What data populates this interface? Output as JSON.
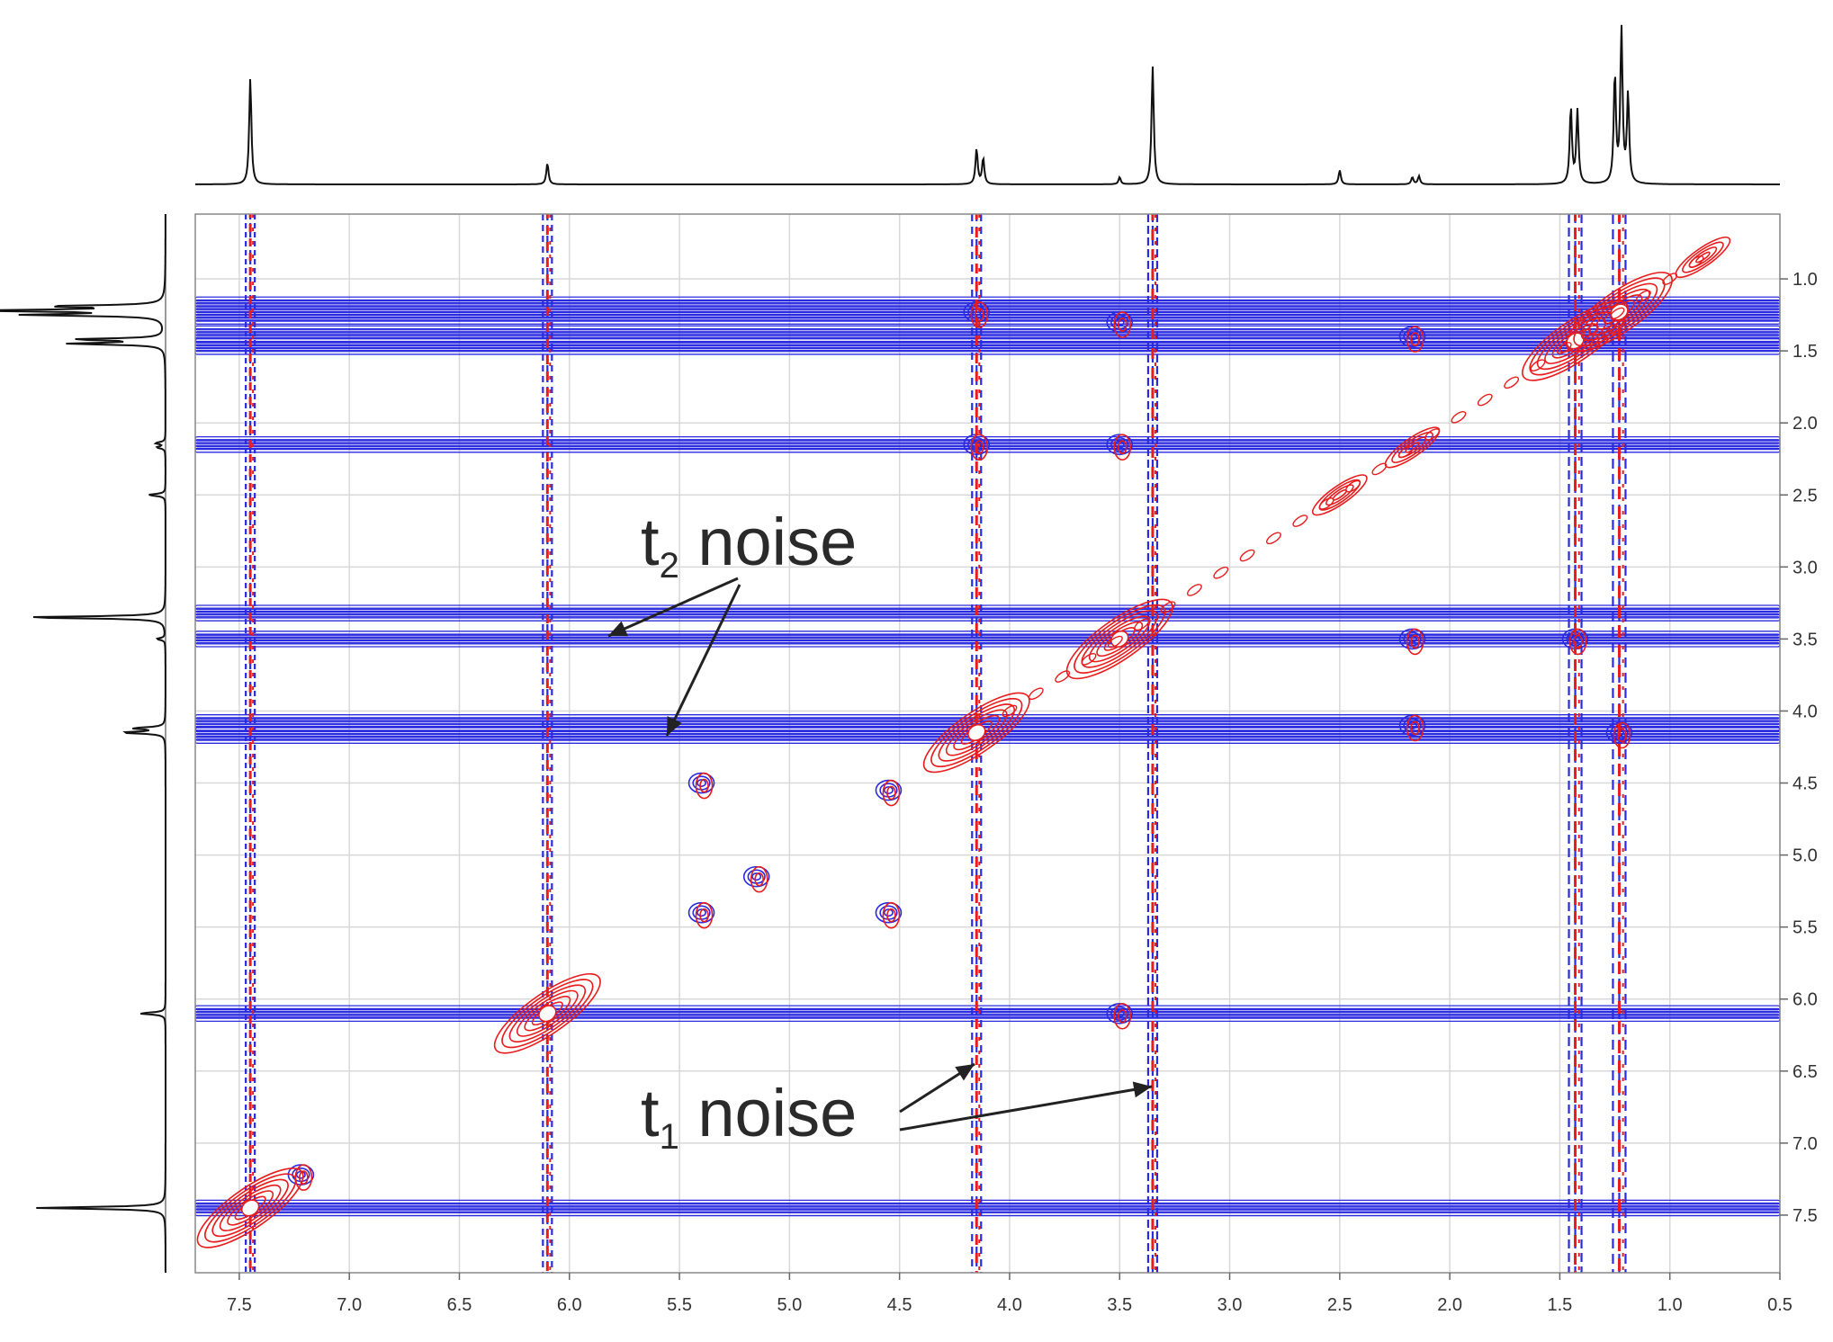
{
  "chart_data": {
    "type": "contour",
    "x_axis": {
      "range": [
        7.7,
        0.5
      ],
      "reversed": true,
      "ticks": [
        "7.5",
        "7.0",
        "6.5",
        "6.0",
        "5.5",
        "5.0",
        "4.5",
        "4.0",
        "3.5",
        "3.0",
        "2.5",
        "2.0",
        "1.5",
        "1.0",
        "0.5"
      ],
      "label": ""
    },
    "y_axis": {
      "range": [
        0.55,
        7.9
      ],
      "reversed": true,
      "position": "right",
      "ticks": [
        "1.0",
        "1.5",
        "2.0",
        "2.5",
        "3.0",
        "3.5",
        "4.0",
        "4.5",
        "5.0",
        "5.5",
        "6.0",
        "6.5",
        "7.0",
        "7.5"
      ],
      "label": ""
    },
    "grid": true,
    "colors": {
      "positive": "#2a2ae0",
      "negative": "#e81c1c",
      "trace": "#111111",
      "grid": "#d8d8d8"
    },
    "projection_peaks_ppm": [
      {
        "ppm": 7.45,
        "height": 0.9
      },
      {
        "ppm": 6.1,
        "height": 0.18
      },
      {
        "ppm": 4.15,
        "height": 0.3
      },
      {
        "ppm": 4.12,
        "height": 0.22
      },
      {
        "ppm": 3.5,
        "height": 0.06
      },
      {
        "ppm": 3.35,
        "height": 1.0
      },
      {
        "ppm": 2.5,
        "height": 0.12
      },
      {
        "ppm": 2.17,
        "height": 0.06
      },
      {
        "ppm": 2.14,
        "height": 0.07
      },
      {
        "ppm": 1.45,
        "height": 0.65
      },
      {
        "ppm": 1.42,
        "height": 0.62
      },
      {
        "ppm": 1.25,
        "height": 0.92
      },
      {
        "ppm": 1.22,
        "height": 1.3
      },
      {
        "ppm": 1.19,
        "height": 0.75
      }
    ],
    "t2_noise_bands_ppm": [
      1.18,
      1.26,
      1.38,
      1.47,
      2.15,
      3.32,
      3.5,
      4.08,
      4.17,
      6.1,
      7.45
    ],
    "t1_noise_columns_ppm": [
      7.45,
      6.1,
      4.15,
      3.35,
      1.43,
      1.23
    ],
    "diagonal_peaks_ppm": [
      7.45,
      6.1,
      4.15,
      3.5,
      2.5,
      2.17,
      1.43,
      1.23,
      0.85
    ],
    "cross_peaks_ppm": [
      {
        "x": 4.15,
        "y": 1.23
      },
      {
        "x": 4.15,
        "y": 2.15
      },
      {
        "x": 3.5,
        "y": 1.3
      },
      {
        "x": 3.5,
        "y": 2.15
      },
      {
        "x": 3.5,
        "y": 6.1
      },
      {
        "x": 2.17,
        "y": 1.4
      },
      {
        "x": 2.17,
        "y": 3.5
      },
      {
        "x": 2.17,
        "y": 4.1
      },
      {
        "x": 1.43,
        "y": 3.5
      },
      {
        "x": 1.23,
        "y": 4.15
      },
      {
        "x": 5.4,
        "y": 4.5
      },
      {
        "x": 5.4,
        "y": 5.4
      },
      {
        "x": 4.55,
        "y": 4.55
      },
      {
        "x": 4.55,
        "y": 5.4
      },
      {
        "x": 5.15,
        "y": 5.15
      },
      {
        "x": 7.22,
        "y": 7.22
      }
    ],
    "annotations": [
      {
        "base": "t",
        "sub": "2",
        "text": " noise"
      },
      {
        "base": "t",
        "sub": "1",
        "text": " noise"
      }
    ]
  }
}
